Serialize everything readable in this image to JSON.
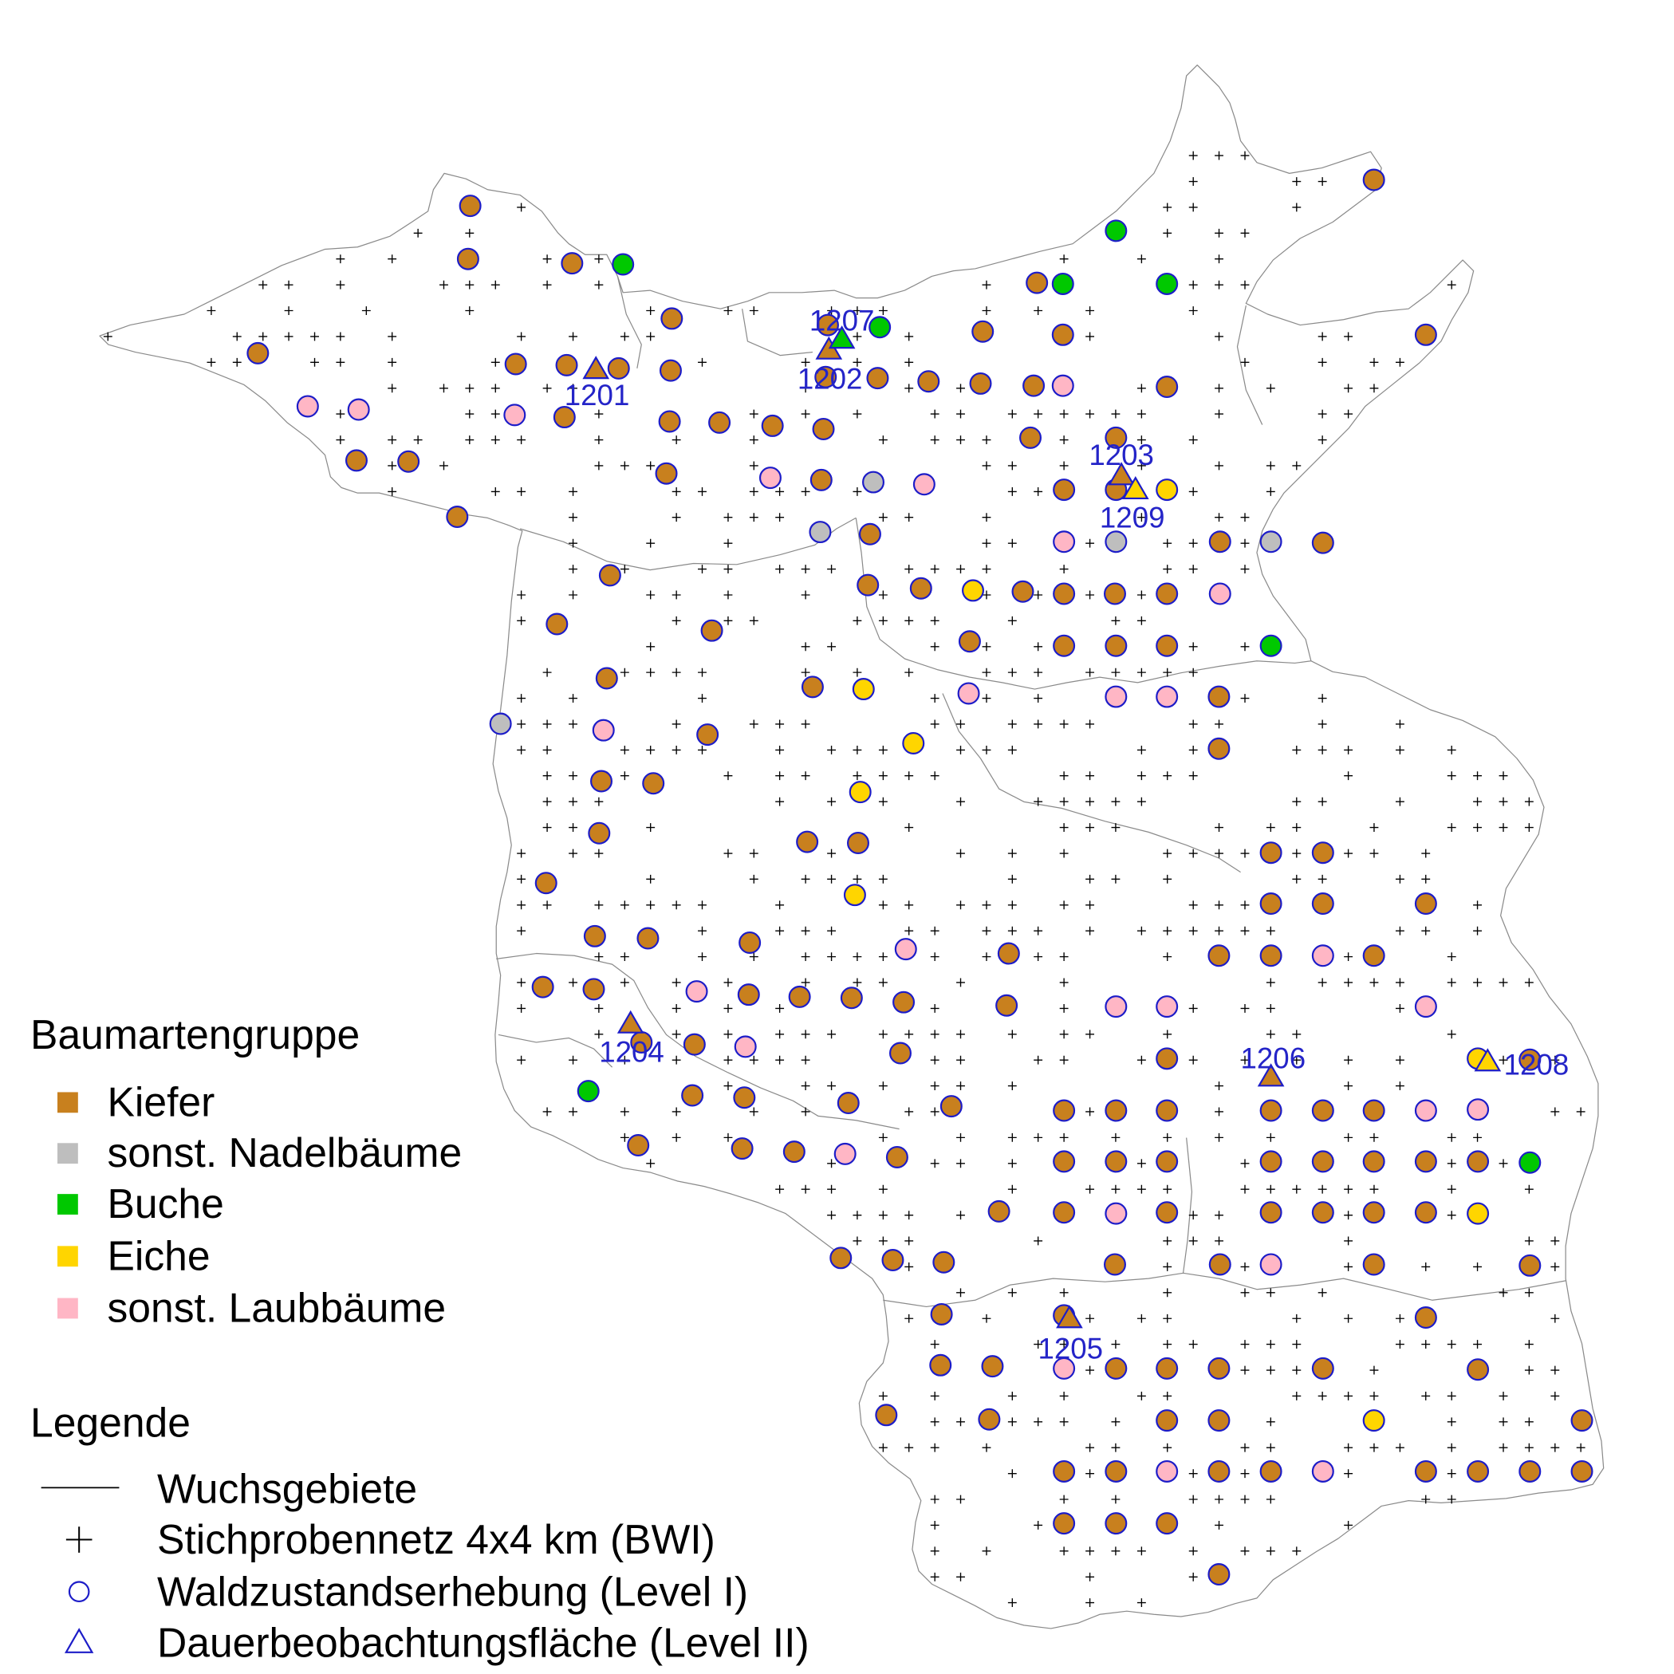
{
  "legend_species": {
    "title": "Baumartengruppe",
    "items": [
      {
        "label": "Kiefer",
        "color": "#C8801E"
      },
      {
        "label": "sonst. Nadelbäume",
        "color": "#BEBEBE"
      },
      {
        "label": "Buche",
        "color": "#00C800"
      },
      {
        "label": "Eiche",
        "color": "#FFD500"
      },
      {
        "label": "sonst. Laubbäume",
        "color": "#FFB6C5"
      }
    ]
  },
  "legend_symbols": {
    "title": "Legende",
    "items": [
      {
        "label": "Wuchsgebiete",
        "icon": "line-icon"
      },
      {
        "label": "Stichprobennetz 4x4 km (BWI)",
        "icon": "plus-icon"
      },
      {
        "label": "Waldzustandserhebung (Level I)",
        "icon": "circle-icon"
      },
      {
        "label": "Dauerbeobachtungsfläche (Level II)",
        "icon": "triangle-icon"
      }
    ]
  },
  "colors": {
    "marker_outline": "#1C1CC8",
    "plot_label": "#2424C8",
    "boundary": "#8A8A8A",
    "grid": "#000000"
  },
  "level2_plots": [
    {
      "id": "1201",
      "color": "#C8801E"
    },
    {
      "id": "1202",
      "color": "#C8801E"
    },
    {
      "id": "1207",
      "color": "#00C800"
    },
    {
      "id": "1203",
      "color": "#C8801E"
    },
    {
      "id": "1209",
      "color": "#FFD500"
    },
    {
      "id": "1204",
      "color": "#C8801E"
    },
    {
      "id": "1206",
      "color": "#C8801E"
    },
    {
      "id": "1208",
      "color": "#FFD500"
    },
    {
      "id": "1205",
      "color": "#C8801E"
    }
  ]
}
